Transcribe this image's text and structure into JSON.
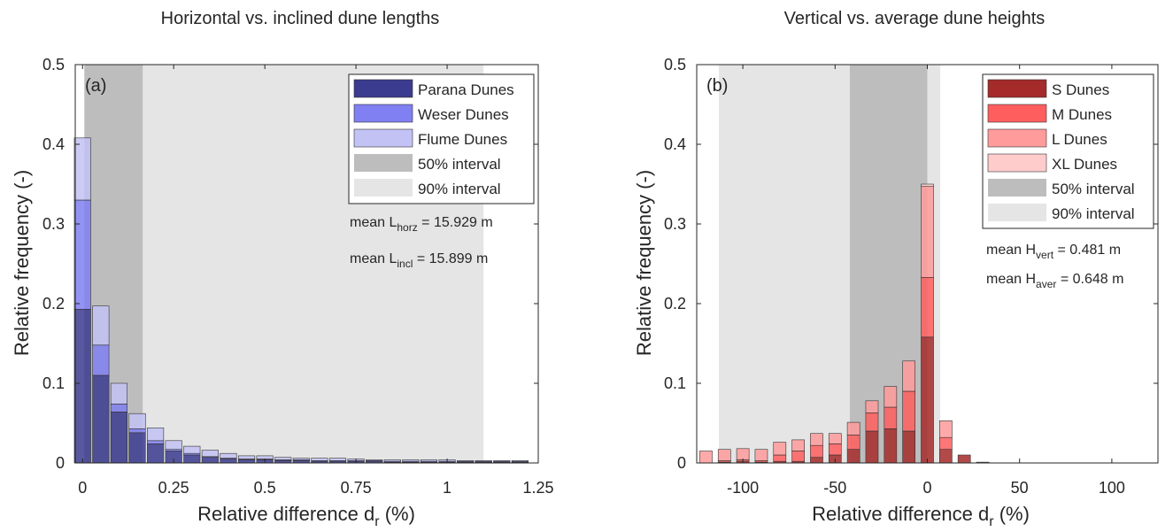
{
  "chart_data": [
    {
      "type": "bar",
      "stacked": true,
      "title": "Horizontal vs. inclined dune lengths",
      "panel_label": "(a)",
      "xlabel_main": "Relative difference d",
      "xlabel_sub": "r",
      "xlabel_unit": " (%)",
      "ylabel": "Relative frequency (-)",
      "xlim": [
        -0.02,
        1.25
      ],
      "ylim": [
        0,
        0.5
      ],
      "xticks": [
        0,
        0.25,
        0.5,
        0.75,
        1,
        1.25
      ],
      "xtick_labels": [
        "0",
        "0.25",
        "0.5",
        "0.75",
        "1",
        "1.25"
      ],
      "yticks": [
        0,
        0.1,
        0.2,
        0.3,
        0.4,
        0.5
      ],
      "ytick_labels": [
        "0",
        "0.1",
        "0.2",
        "0.3",
        "0.4",
        "0.5"
      ],
      "bin_width": 0.05,
      "x": [
        0,
        0.05,
        0.1,
        0.15,
        0.2,
        0.25,
        0.3,
        0.35,
        0.4,
        0.45,
        0.5,
        0.55,
        0.6,
        0.65,
        0.7,
        0.75,
        0.8,
        0.85,
        0.9,
        0.95,
        1.0,
        1.05,
        1.1,
        1.15,
        1.2
      ],
      "shaded_intervals": [
        {
          "name": "90% interval",
          "range": [
            0.005,
            1.1
          ],
          "color": "#e5e5e5"
        },
        {
          "name": "50% interval",
          "range": [
            0.005,
            0.165
          ],
          "color": "#bdbdbd"
        }
      ],
      "series": [
        {
          "name": "Parana Dunes",
          "color": "#3b3b8f",
          "values": [
            0.193,
            0.11,
            0.064,
            0.038,
            0.024,
            0.015,
            0.01,
            0.007,
            0.005,
            0.004,
            0.004,
            0.003,
            0.003,
            0.002,
            0.002,
            0.002,
            0.002,
            0.001,
            0.001,
            0.001,
            0.001,
            0.001,
            0.001,
            0.001,
            0.001
          ]
        },
        {
          "name": "Weser Dunes",
          "color": "#8080f2",
          "values": [
            0.137,
            0.038,
            0.01,
            0.005,
            0.004,
            0.002,
            0.002,
            0.001,
            0.001,
            0.001,
            0.001,
            0.001,
            0.001,
            0.001,
            0.001,
            0.001,
            0.001,
            0.001,
            0.001,
            0.001,
            0.001,
            0.001,
            0.001,
            0.001,
            0.001
          ]
        },
        {
          "name": "Flume Dunes",
          "color": "#c2c2f5",
          "values": [
            0.078,
            0.049,
            0.026,
            0.019,
            0.016,
            0.011,
            0.009,
            0.008,
            0.006,
            0.004,
            0.004,
            0.003,
            0.002,
            0.003,
            0.003,
            0.002,
            0.001,
            0.002,
            0.002,
            0.002,
            0.002,
            0.001,
            0.001,
            0.001,
            0.001
          ]
        }
      ],
      "legend": {
        "placement": "top-right",
        "items": [
          "Parana Dunes",
          "Weser Dunes",
          "Flume Dunes",
          "50% interval",
          "90% interval"
        ]
      },
      "annotations": [
        {
          "prefix": "mean L",
          "sub": "horz",
          "suffix": " = 15.929 m"
        },
        {
          "prefix": "mean L",
          "sub": "incl",
          "suffix": "  = 15.899 m"
        }
      ]
    },
    {
      "type": "bar",
      "stacked": true,
      "title": "Vertical vs. average dune heights",
      "panel_label": "(b)",
      "xlabel_main": "Relative difference d",
      "xlabel_sub": "r",
      "xlabel_unit": " (%)",
      "ylabel": "Relative frequency (-)",
      "xlim": [
        -125,
        125
      ],
      "ylim": [
        0,
        0.5
      ],
      "xticks": [
        -100,
        -50,
        0,
        50,
        100
      ],
      "xtick_labels": [
        "-100",
        "-50",
        "0",
        "50",
        "100"
      ],
      "yticks": [
        0,
        0.1,
        0.2,
        0.3,
        0.4,
        0.5
      ],
      "ytick_labels": [
        "0",
        "0.1",
        "0.2",
        "0.3",
        "0.4",
        "0.5"
      ],
      "bin_width": 7.5,
      "x": [
        -120,
        -110,
        -100,
        -90,
        -80,
        -70,
        -60,
        -50,
        -40,
        -30,
        -20,
        -10,
        0,
        10,
        20,
        30
      ],
      "shaded_intervals": [
        {
          "name": "90% interval",
          "range": [
            -113,
            7
          ],
          "color": "#e5e5e5"
        },
        {
          "name": "50% interval",
          "range": [
            -42,
            0
          ],
          "color": "#bdbdbd"
        }
      ],
      "series": [
        {
          "name": "S Dunes",
          "color": "#a52a2a",
          "values": [
            0.0,
            0.001,
            0.002,
            0.001,
            0.002,
            0.002,
            0.007,
            0.01,
            0.017,
            0.04,
            0.043,
            0.04,
            0.158,
            0.017,
            0.01,
            0.001
          ]
        },
        {
          "name": "M Dunes",
          "color": "#ff5e5e",
          "values": [
            0.0,
            0.002,
            0.002,
            0.002,
            0.008,
            0.013,
            0.015,
            0.014,
            0.018,
            0.023,
            0.027,
            0.05,
            0.075,
            0.015,
            0.0,
            0.0
          ]
        },
        {
          "name": "L Dunes",
          "color": "#ff9b9b",
          "values": [
            0.015,
            0.014,
            0.014,
            0.014,
            0.016,
            0.014,
            0.015,
            0.013,
            0.016,
            0.015,
            0.026,
            0.038,
            0.114,
            0.021,
            0.0,
            0.0
          ]
        },
        {
          "name": "XL Dunes",
          "color": "#ffcccc",
          "values": [
            0.0,
            0.0,
            0.0,
            0.0,
            0.0,
            0.0,
            0.0,
            0.0,
            0.0,
            0.0,
            0.0,
            0.0,
            0.003,
            0.0,
            0.0,
            0.0
          ]
        }
      ],
      "legend": {
        "placement": "top-right",
        "items": [
          "S Dunes",
          "M Dunes",
          "L Dunes",
          "XL Dunes",
          "50% interval",
          "90% interval"
        ]
      },
      "annotations": [
        {
          "prefix": "mean H",
          "sub": "vert",
          "suffix": "  = 0.481 m"
        },
        {
          "prefix": "mean H",
          "sub": "aver",
          "suffix": " = 0.648 m"
        }
      ]
    }
  ]
}
